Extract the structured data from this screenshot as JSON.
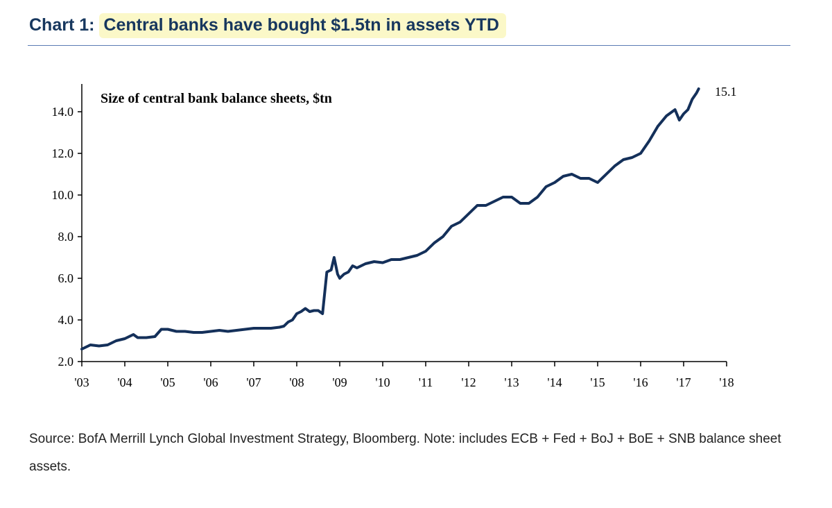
{
  "header": {
    "prefix": "Chart 1:",
    "headline": "Central banks have bought $1.5tn in assets YTD"
  },
  "footer": {
    "source": "Source: BofA Merrill Lynch Global Investment Strategy, Bloomberg. Note: includes ECB + Fed + BoJ + BoE + SNB balance sheet assets."
  },
  "colors": {
    "line": "#14305a",
    "title_text": "#17375e",
    "highlight": "#fbf8c8",
    "rule": "#5b7bb4"
  },
  "chart_data": {
    "type": "line",
    "title": "Size of central bank balance sheets, $tn",
    "xlabel": "",
    "ylabel": "",
    "xlim": [
      2003,
      2018
    ],
    "ylim": [
      2.0,
      15.0
    ],
    "x_ticks": [
      2003,
      2004,
      2005,
      2006,
      2007,
      2008,
      2009,
      2010,
      2011,
      2012,
      2013,
      2014,
      2015,
      2016,
      2017,
      2018
    ],
    "x_tick_labels": [
      "'03",
      "'04",
      "'05",
      "'06",
      "'07",
      "'08",
      "'09",
      "'10",
      "'11",
      "'12",
      "'13",
      "'14",
      "'15",
      "'16",
      "'17",
      "'18"
    ],
    "y_ticks": [
      2.0,
      4.0,
      6.0,
      8.0,
      10.0,
      12.0,
      14.0
    ],
    "y_tick_labels": [
      "2.0",
      "4.0",
      "6.0",
      "8.0",
      "10.0",
      "12.0",
      "14.0"
    ],
    "end_label": "15.1",
    "series": [
      {
        "name": "Central bank balance sheets",
        "x": [
          2003.0,
          2003.2,
          2003.4,
          2003.6,
          2003.8,
          2004.0,
          2004.2,
          2004.3,
          2004.5,
          2004.7,
          2004.85,
          2005.0,
          2005.2,
          2005.4,
          2005.6,
          2005.8,
          2006.0,
          2006.2,
          2006.4,
          2006.6,
          2006.8,
          2007.0,
          2007.2,
          2007.4,
          2007.6,
          2007.7,
          2007.8,
          2007.9,
          2008.0,
          2008.1,
          2008.2,
          2008.3,
          2008.4,
          2008.5,
          2008.6,
          2008.7,
          2008.8,
          2008.87,
          2008.95,
          2009.0,
          2009.1,
          2009.2,
          2009.3,
          2009.4,
          2009.6,
          2009.8,
          2010.0,
          2010.2,
          2010.4,
          2010.6,
          2010.8,
          2011.0,
          2011.2,
          2011.4,
          2011.6,
          2011.8,
          2012.0,
          2012.2,
          2012.4,
          2012.6,
          2012.8,
          2013.0,
          2013.2,
          2013.4,
          2013.6,
          2013.8,
          2014.0,
          2014.2,
          2014.4,
          2014.6,
          2014.8,
          2015.0,
          2015.2,
          2015.4,
          2015.6,
          2015.8,
          2016.0,
          2016.2,
          2016.4,
          2016.6,
          2016.8,
          2016.9,
          2017.0,
          2017.1,
          2017.2,
          2017.3,
          2017.35
        ],
        "values": [
          2.6,
          2.8,
          2.75,
          2.8,
          3.0,
          3.1,
          3.3,
          3.15,
          3.15,
          3.2,
          3.55,
          3.55,
          3.45,
          3.45,
          3.4,
          3.4,
          3.45,
          3.5,
          3.45,
          3.5,
          3.55,
          3.6,
          3.6,
          3.6,
          3.65,
          3.7,
          3.9,
          4.0,
          4.3,
          4.4,
          4.55,
          4.4,
          4.45,
          4.45,
          4.3,
          6.3,
          6.4,
          7.0,
          6.2,
          6.0,
          6.2,
          6.3,
          6.6,
          6.5,
          6.7,
          6.8,
          6.75,
          6.9,
          6.9,
          7.0,
          7.1,
          7.3,
          7.7,
          8.0,
          8.5,
          8.7,
          9.1,
          9.5,
          9.5,
          9.7,
          9.9,
          9.9,
          9.6,
          9.6,
          9.9,
          10.4,
          10.6,
          10.9,
          11.0,
          10.8,
          10.8,
          10.6,
          11.0,
          11.4,
          11.7,
          11.8,
          12.0,
          12.6,
          13.3,
          13.8,
          14.1,
          13.6,
          13.9,
          14.1,
          14.6,
          14.9,
          15.1
        ]
      }
    ]
  }
}
